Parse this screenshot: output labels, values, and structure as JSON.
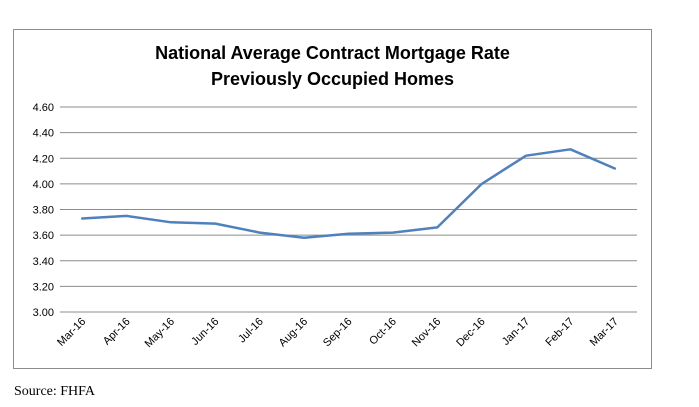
{
  "chart_data": {
    "type": "line",
    "title_line1": "National Average Contract Mortgage Rate",
    "title_line2": "Previously Occupied Homes",
    "xlabel": "",
    "ylabel": "",
    "categories": [
      "Mar-16",
      "Apr-16",
      "May-16",
      "Jun-16",
      "Jul-16",
      "Aug-16",
      "Sep-16",
      "Oct-16",
      "Nov-16",
      "Dec-16",
      "Jan-17",
      "Feb-17",
      "Mar-17"
    ],
    "series": [
      {
        "values": [
          3.73,
          3.75,
          3.7,
          3.69,
          3.62,
          3.58,
          3.61,
          3.62,
          3.66,
          4.0,
          4.22,
          4.27,
          4.12
        ]
      }
    ],
    "ylim": [
      3.0,
      4.6
    ],
    "yticks": [
      "3.00",
      "3.20",
      "3.40",
      "3.60",
      "3.80",
      "4.00",
      "4.20",
      "4.40",
      "4.60"
    ],
    "grid": true,
    "line_color": "#4f81bd",
    "grid_color": "#8c8c8c"
  },
  "source": "Source:  FHFA"
}
